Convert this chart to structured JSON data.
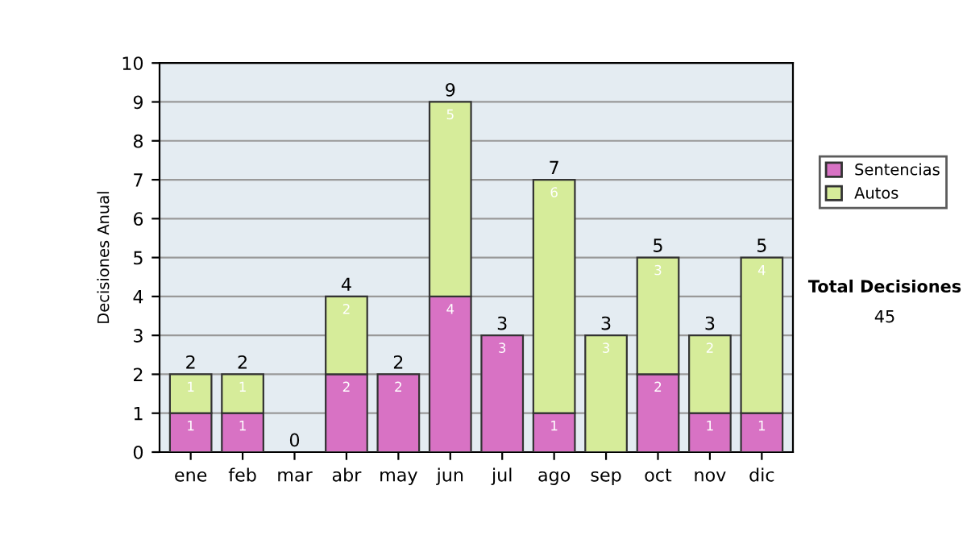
{
  "chart_data": {
    "type": "bar",
    "stacked": true,
    "ylabel": "Decisiones Anual",
    "categories": [
      "ene",
      "feb",
      "mar",
      "abr",
      "may",
      "jun",
      "jul",
      "ago",
      "sep",
      "oct",
      "nov",
      "dic"
    ],
    "series": [
      {
        "name": "Sentencias",
        "color": "#d872c4",
        "values": [
          1,
          1,
          0,
          2,
          2,
          4,
          3,
          1,
          0,
          2,
          1,
          1
        ],
        "value_labels": [
          "1",
          "1",
          null,
          "2",
          "2",
          "4",
          "3",
          "1",
          null,
          "2",
          "1",
          "1"
        ]
      },
      {
        "name": "Autos",
        "color": "#d6ec9a",
        "values": [
          1,
          1,
          0,
          2,
          0,
          5,
          0,
          6,
          3,
          3,
          2,
          4
        ],
        "value_labels": [
          "1",
          "1",
          null,
          "2",
          null,
          "5",
          null,
          "6",
          "3",
          "3",
          "2",
          "4"
        ]
      }
    ],
    "totals": [
      "2",
      "2",
      "0",
      "4",
      "2",
      "9",
      "3",
      "7",
      "3",
      "5",
      "3",
      "5"
    ],
    "ylim": [
      0,
      10
    ],
    "yticks": [
      0,
      1,
      2,
      3,
      4,
      5,
      6,
      7,
      8,
      9,
      10
    ],
    "grid": "y",
    "legend": "right",
    "annotations": [
      "Total Decisiones",
      "45"
    ]
  }
}
